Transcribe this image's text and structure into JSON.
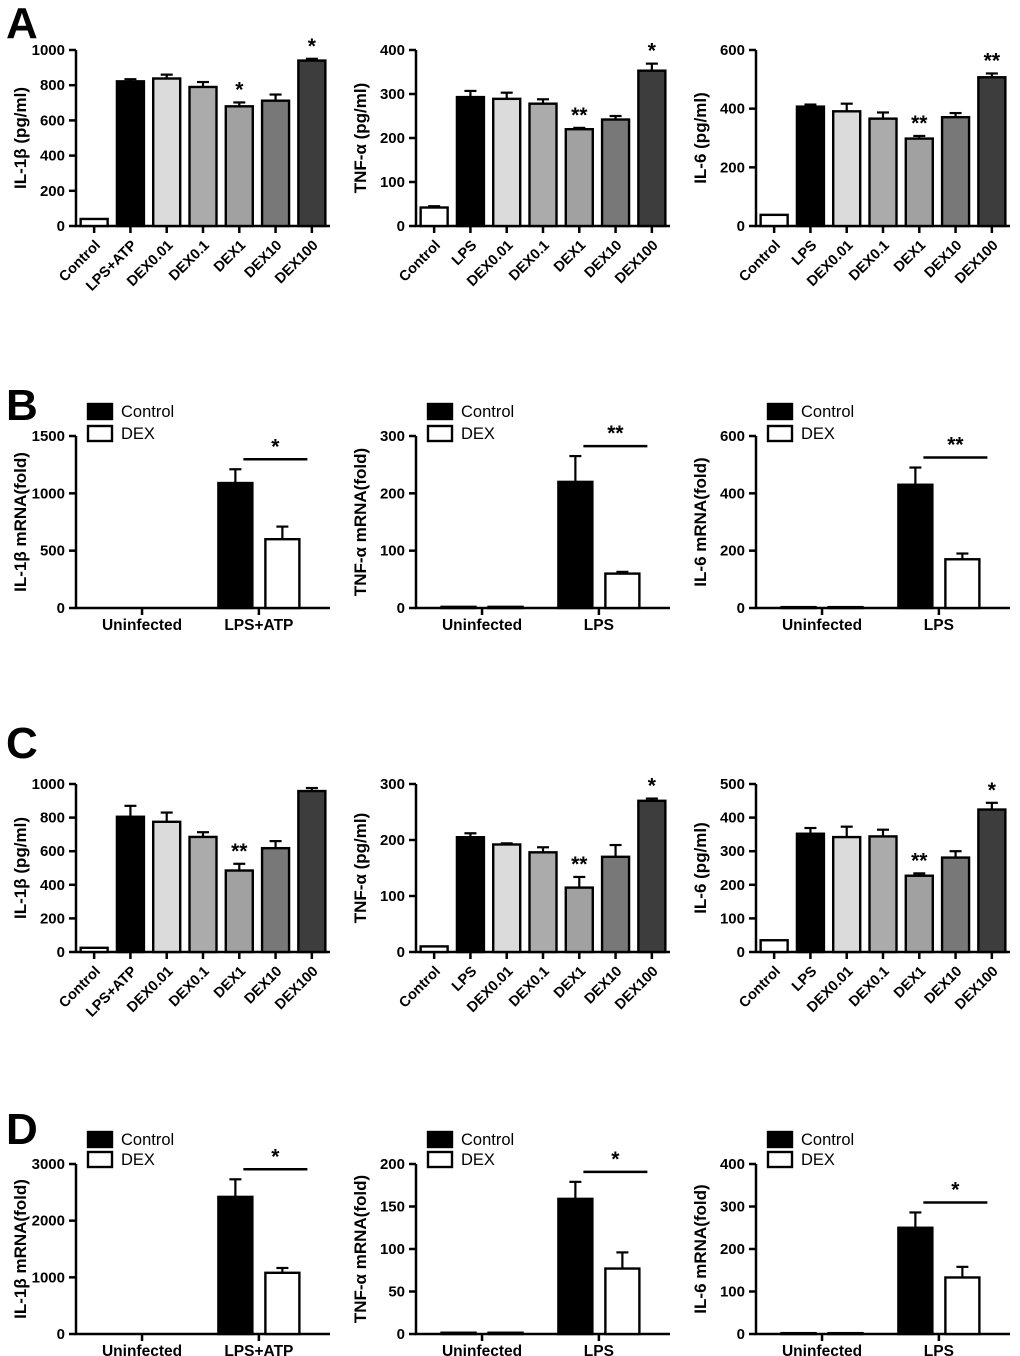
{
  "panel_labels": [
    "A",
    "B",
    "C",
    "D"
  ],
  "legend_labels": [
    "Control",
    "DEX"
  ],
  "palette": {
    "control_fill": "#ffffff",
    "lps_fill": "#000000",
    "dex_series_fills": [
      "#dbdbdb",
      "#ababab",
      "#a1a1a1",
      "#787878",
      "#3d3d3d"
    ],
    "axis_color": "#000000",
    "background": "#ffffff"
  },
  "chart_data": [
    {
      "panel": "A",
      "type": "bar",
      "ylabel": "IL-1β (pg/ml)",
      "ylim": [
        0,
        1000
      ],
      "yticks": [
        0,
        200,
        400,
        600,
        800,
        1000
      ],
      "categories": [
        "Control",
        "LPS+ATP",
        "DEX0.01",
        "DEX0.1",
        "DEX1",
        "DEX10",
        "DEX100"
      ],
      "values": [
        40,
        822,
        838,
        790,
        680,
        712,
        940
      ],
      "errors": [
        0,
        12,
        22,
        28,
        22,
        35,
        10
      ],
      "sig": [
        "",
        "",
        "",
        "",
        "*",
        "",
        "*"
      ],
      "bar_colors": [
        "#ffffff",
        "#000000",
        "#dbdbdb",
        "#ababab",
        "#a1a1a1",
        "#787878",
        "#3d3d3d"
      ]
    },
    {
      "panel": "A",
      "type": "bar",
      "ylabel": "TNF-α (pg/ml)",
      "ylim": [
        0,
        400
      ],
      "yticks": [
        0,
        100,
        200,
        300,
        400
      ],
      "categories": [
        "Control",
        "LPS",
        "DEX0.01",
        "DEX0.1",
        "DEX1",
        "DEX10",
        "DEX100"
      ],
      "values": [
        42,
        293,
        289,
        278,
        220,
        242,
        353
      ],
      "errors": [
        3,
        14,
        14,
        10,
        3,
        8,
        16
      ],
      "sig": [
        "",
        "",
        "",
        "",
        "**",
        "",
        "*"
      ],
      "bar_colors": [
        "#ffffff",
        "#000000",
        "#dbdbdb",
        "#ababab",
        "#a1a1a1",
        "#787878",
        "#3d3d3d"
      ]
    },
    {
      "panel": "A",
      "type": "bar",
      "ylabel": "IL-6 (pg/ml)",
      "ylim": [
        0,
        600
      ],
      "yticks": [
        0,
        200,
        400,
        600
      ],
      "categories": [
        "Control",
        "LPS",
        "DEX0.01",
        "DEX0.1",
        "DEX1",
        "DEX10",
        "DEX100"
      ],
      "values": [
        38,
        407,
        391,
        366,
        298,
        371,
        507
      ],
      "errors": [
        0,
        7,
        26,
        21,
        9,
        14,
        13
      ],
      "sig": [
        "",
        "",
        "",
        "",
        "**",
        "",
        "**"
      ],
      "bar_colors": [
        "#ffffff",
        "#000000",
        "#dbdbdb",
        "#ababab",
        "#a1a1a1",
        "#787878",
        "#3d3d3d"
      ]
    },
    {
      "panel": "B",
      "type": "grouped_bar",
      "ylabel": "IL-1β mRNA(fold)",
      "ylim": [
        0,
        1500
      ],
      "yticks": [
        0,
        500,
        1000,
        1500
      ],
      "categories": [
        "Uninfected",
        "LPS+ATP"
      ],
      "legend": [
        "Control",
        "DEX"
      ],
      "series": [
        {
          "name": "Control",
          "color": "#000000",
          "values": [
            0,
            1090
          ],
          "errors": [
            0,
            120
          ]
        },
        {
          "name": "DEX",
          "color": "#ffffff",
          "values": [
            0,
            600
          ],
          "errors": [
            0,
            110
          ]
        }
      ],
      "sig": {
        "group_index": 1,
        "label": "*"
      }
    },
    {
      "panel": "B",
      "type": "grouped_bar",
      "ylabel": "TNF-α mRNA(fold)",
      "ylim": [
        0,
        300
      ],
      "yticks": [
        0,
        100,
        200,
        300
      ],
      "categories": [
        "Uninfected",
        "LPS"
      ],
      "legend": [
        "Control",
        "DEX"
      ],
      "series": [
        {
          "name": "Control",
          "color": "#000000",
          "values": [
            2,
            220
          ],
          "errors": [
            0,
            45
          ]
        },
        {
          "name": "DEX",
          "color": "#ffffff",
          "values": [
            2,
            60
          ],
          "errors": [
            0,
            3
          ]
        }
      ],
      "sig": {
        "group_index": 1,
        "label": "**"
      }
    },
    {
      "panel": "B",
      "type": "grouped_bar",
      "ylabel": "IL-6 mRNA(fold)",
      "ylim": [
        0,
        600
      ],
      "yticks": [
        0,
        200,
        400,
        600
      ],
      "categories": [
        "Uninfected",
        "LPS"
      ],
      "legend": [
        "Control",
        "DEX"
      ],
      "series": [
        {
          "name": "Control",
          "color": "#000000",
          "values": [
            3,
            430
          ],
          "errors": [
            0,
            60
          ]
        },
        {
          "name": "DEX",
          "color": "#ffffff",
          "values": [
            3,
            170
          ],
          "errors": [
            0,
            20
          ]
        }
      ],
      "sig": {
        "group_index": 1,
        "label": "**"
      }
    },
    {
      "panel": "C",
      "type": "bar",
      "ylabel": "IL-1β (pg/ml)",
      "ylim": [
        0,
        1000
      ],
      "yticks": [
        0,
        200,
        400,
        600,
        800,
        1000
      ],
      "categories": [
        "Control",
        "LPS+ATP",
        "DEX0.01",
        "DEX0.1",
        "DEX1",
        "DEX10",
        "DEX100"
      ],
      "values": [
        25,
        805,
        775,
        685,
        485,
        618,
        958
      ],
      "errors": [
        0,
        65,
        55,
        28,
        40,
        42,
        18
      ],
      "sig": [
        "",
        "",
        "",
        "",
        "**",
        "",
        ""
      ],
      "bar_colors": [
        "#ffffff",
        "#000000",
        "#dbdbdb",
        "#ababab",
        "#a1a1a1",
        "#787878",
        "#3d3d3d"
      ]
    },
    {
      "panel": "C",
      "type": "bar",
      "ylabel": "TNF-α (pg/ml)",
      "ylim": [
        0,
        300
      ],
      "yticks": [
        0,
        100,
        200,
        300
      ],
      "categories": [
        "Control",
        "LPS",
        "DEX0.01",
        "DEX0.1",
        "DEX1",
        "DEX10",
        "DEX100"
      ],
      "values": [
        10,
        205,
        192,
        178,
        115,
        170,
        270
      ],
      "errors": [
        0,
        7,
        2,
        9,
        19,
        21,
        4
      ],
      "sig": [
        "",
        "",
        "",
        "",
        "**",
        "",
        "*"
      ],
      "bar_colors": [
        "#ffffff",
        "#000000",
        "#dbdbdb",
        "#ababab",
        "#a1a1a1",
        "#787878",
        "#3d3d3d"
      ]
    },
    {
      "panel": "C",
      "type": "bar",
      "ylabel": "IL-6 (pg/ml)",
      "ylim": [
        0,
        500
      ],
      "yticks": [
        0,
        100,
        200,
        300,
        400,
        500
      ],
      "categories": [
        "Control",
        "LPS",
        "DEX0.01",
        "DEX0.1",
        "DEX1",
        "DEX10",
        "DEX100"
      ],
      "values": [
        35,
        352,
        342,
        344,
        227,
        281,
        424
      ],
      "errors": [
        0,
        17,
        31,
        20,
        7,
        19,
        20
      ],
      "sig": [
        "",
        "",
        "",
        "",
        "**",
        "",
        "*"
      ],
      "bar_colors": [
        "#ffffff",
        "#000000",
        "#dbdbdb",
        "#ababab",
        "#a1a1a1",
        "#787878",
        "#3d3d3d"
      ]
    },
    {
      "panel": "D",
      "type": "grouped_bar",
      "ylabel": "IL-1β mRNA(fold)",
      "ylim": [
        0,
        3000
      ],
      "yticks": [
        0,
        1000,
        2000,
        3000
      ],
      "categories": [
        "Uninfected",
        "LPS+ATP"
      ],
      "legend": [
        "Control",
        "DEX"
      ],
      "series": [
        {
          "name": "Control",
          "color": "#000000",
          "values": [
            0,
            2420
          ],
          "errors": [
            0,
            310
          ]
        },
        {
          "name": "DEX",
          "color": "#ffffff",
          "values": [
            0,
            1080
          ],
          "errors": [
            0,
            85
          ]
        }
      ],
      "sig": {
        "group_index": 1,
        "label": "*"
      }
    },
    {
      "panel": "D",
      "type": "grouped_bar",
      "ylabel": "TNF-α mRNA(fold)",
      "ylim": [
        0,
        200
      ],
      "yticks": [
        0,
        50,
        100,
        150,
        200
      ],
      "categories": [
        "Uninfected",
        "LPS"
      ],
      "legend": [
        "Control",
        "DEX"
      ],
      "series": [
        {
          "name": "Control",
          "color": "#000000",
          "values": [
            1.5,
            159
          ],
          "errors": [
            0,
            20
          ]
        },
        {
          "name": "DEX",
          "color": "#ffffff",
          "values": [
            1.5,
            77
          ],
          "errors": [
            0,
            19
          ]
        }
      ],
      "sig": {
        "group_index": 1,
        "label": "*"
      }
    },
    {
      "panel": "D",
      "type": "grouped_bar",
      "ylabel": "IL-6 mRNA(fold)",
      "ylim": [
        0,
        400
      ],
      "yticks": [
        0,
        100,
        200,
        300,
        400
      ],
      "categories": [
        "Uninfected",
        "LPS"
      ],
      "legend": [
        "Control",
        "DEX"
      ],
      "series": [
        {
          "name": "Control",
          "color": "#000000",
          "values": [
            2,
            250
          ],
          "errors": [
            0,
            36
          ]
        },
        {
          "name": "DEX",
          "color": "#ffffff",
          "values": [
            2,
            133
          ],
          "errors": [
            0,
            25
          ]
        }
      ],
      "sig": {
        "group_index": 1,
        "label": "*"
      }
    }
  ]
}
